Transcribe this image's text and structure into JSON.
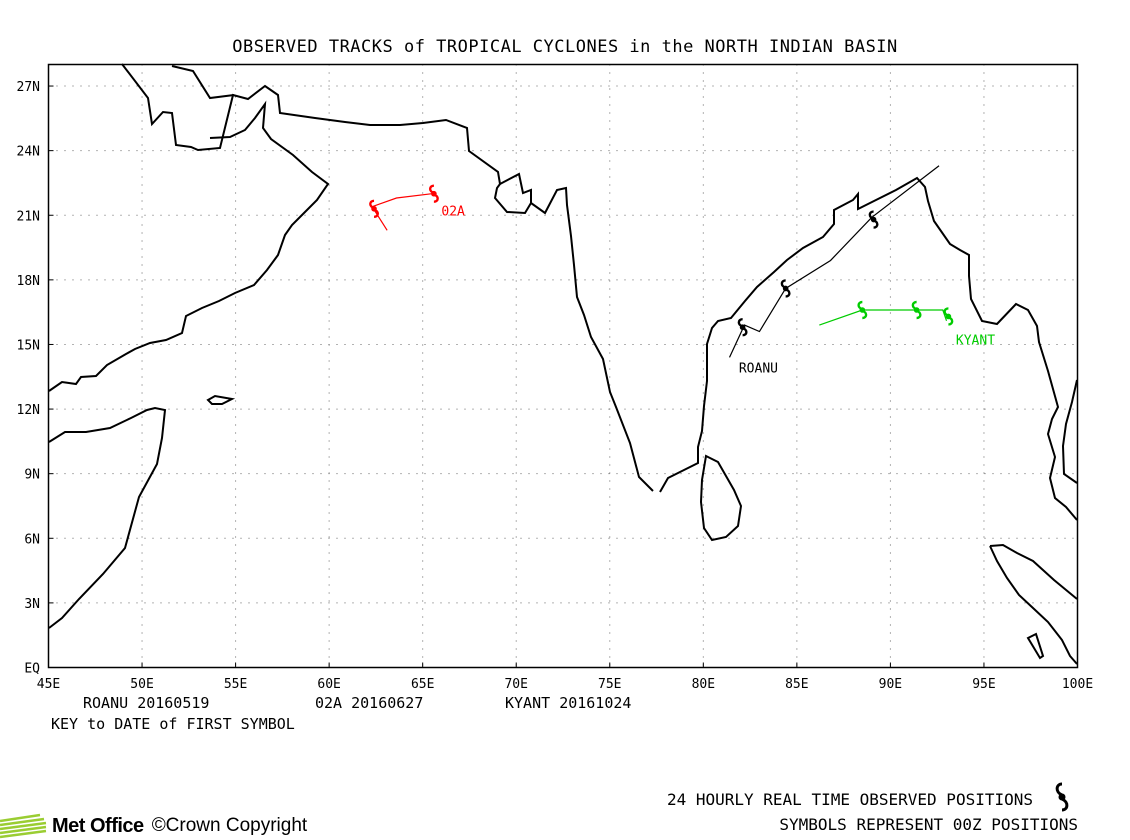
{
  "title": "OBSERVED TRACKS of TROPICAL CYCLONES in the NORTH INDIAN BASIN",
  "axes": {
    "x_ticks": [
      "45E",
      "50E",
      "55E",
      "60E",
      "65E",
      "70E",
      "75E",
      "80E",
      "85E",
      "90E",
      "95E",
      "100E"
    ],
    "y_ticks": [
      "EQ",
      "3N",
      "6N",
      "9N",
      "12N",
      "15N",
      "18N",
      "21N",
      "24N",
      "27N"
    ]
  },
  "storms": [
    {
      "name": "ROANU",
      "first_date": "20160519",
      "color": "#000000",
      "track": [
        [
          81.4,
          14.4
        ],
        [
          82.2,
          15.9
        ],
        [
          83.0,
          15.6
        ],
        [
          84.4,
          17.6
        ],
        [
          86.8,
          18.9
        ],
        [
          89.0,
          20.9
        ],
        [
          92.6,
          23.3
        ]
      ],
      "symbols": [
        [
          82.1,
          15.8
        ],
        [
          84.4,
          17.6
        ],
        [
          89.1,
          20.8
        ]
      ],
      "label_pos": [
        81.9,
        13.7
      ]
    },
    {
      "name": "02A",
      "first_date": "20160627",
      "color": "#ff0000",
      "track": [
        [
          63.1,
          20.3
        ],
        [
          62.3,
          21.4
        ],
        [
          63.6,
          21.8
        ],
        [
          65.5,
          22.0
        ]
      ],
      "symbols": [
        [
          62.4,
          21.3
        ],
        [
          65.6,
          22.0
        ]
      ],
      "label_pos": [
        66.0,
        21.0
      ]
    },
    {
      "name": "KYANT",
      "first_date": "20161024",
      "color": "#00cc00",
      "track": [
        [
          86.2,
          15.9
        ],
        [
          88.5,
          16.6
        ],
        [
          91.2,
          16.6
        ],
        [
          92.8,
          16.6
        ],
        [
          93.0,
          16.1
        ]
      ],
      "symbols": [
        [
          88.5,
          16.6
        ],
        [
          91.4,
          16.6
        ],
        [
          93.1,
          16.3
        ]
      ],
      "label_pos": [
        93.5,
        15.0
      ]
    }
  ],
  "key_note": "KEY to DATE of FIRST SYMBOL",
  "footer": {
    "line1": "24 HOURLY REAL TIME OBSERVED POSITIONS",
    "line2": "SYMBOLS REPRESENT 00Z POSITIONS",
    "org": "Met Office",
    "copyright": "©Crown Copyright"
  }
}
